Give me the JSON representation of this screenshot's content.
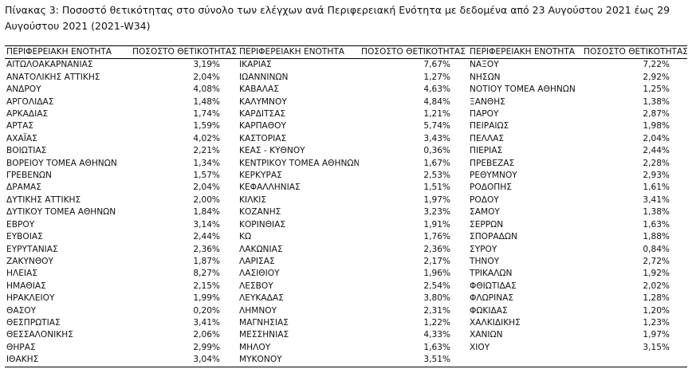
{
  "caption": "Πίνακας 3: Ποσοστό θετικότητας στο σύνολο των ελέγχων ανά Περιφερειακή Ενότητα με δεδομένα από 23 Αυγούστου 2021 έως 29 Αυγούστου 2021 (2021-W34)",
  "table": {
    "groups": [
      {
        "header": [
          "ΠΕΡΙΦΕΡΕΙΑΚΗ ΕΝΟΤΗΤΑ",
          "ΠΟΣΟΣΤΟ ΘΕΤΙΚΟΤΗΤΑΣ"
        ],
        "rows": [
          [
            "ΑΙΤΩΛΟΑΚΑΡΝΑΝΙΑΣ",
            "3,19%"
          ],
          [
            "ΑΝΑΤΟΛΙΚΗΣ ΑΤΤΙΚΗΣ",
            "2,04%"
          ],
          [
            "ΑΝΔΡΟΥ",
            "4,08%"
          ],
          [
            "ΑΡΓΟΛΙΔΑΣ",
            "1,48%"
          ],
          [
            "ΑΡΚΑΔΙΑΣ",
            "1,74%"
          ],
          [
            "ΑΡΤΑΣ",
            "1,59%"
          ],
          [
            "ΑΧΑΪΑΣ",
            "4,02%"
          ],
          [
            "ΒΟΙΩΤΙΑΣ",
            "2,21%"
          ],
          [
            "ΒΟΡΕΙΟΥ ΤΟΜΕΑ ΑΘΗΝΩΝ",
            "1,34%"
          ],
          [
            "ΓΡΕΒΕΝΩΝ",
            "1,57%"
          ],
          [
            "ΔΡΑΜΑΣ",
            "2,04%"
          ],
          [
            "ΔΥΤΙΚΗΣ ΑΤΤΙΚΗΣ",
            "2,00%"
          ],
          [
            "ΔΥΤΙΚΟΥ ΤΟΜΕΑ ΑΘΗΝΩΝ",
            "1,84%"
          ],
          [
            "ΕΒΡΟΥ",
            "3,14%"
          ],
          [
            "ΕΥΒΟΙΑΣ",
            "2,44%"
          ],
          [
            "ΕΥΡΥΤΑΝΙΑΣ",
            "2,36%"
          ],
          [
            "ΖΑΚΥΝΘΟΥ",
            "1,87%"
          ],
          [
            "ΗΛΕΙΑΣ",
            "8,27%"
          ],
          [
            "ΗΜΑΘΙΑΣ",
            "2,15%"
          ],
          [
            "ΗΡΑΚΛΕΙΟΥ",
            "1,99%"
          ],
          [
            "ΘΑΣΟΥ",
            "0,20%"
          ],
          [
            "ΘΕΣΠΡΩΤΙΑΣ",
            "3,41%"
          ],
          [
            "ΘΕΣΣΑΛΟΝΙΚΗΣ",
            "2,06%"
          ],
          [
            "ΘΗΡΑΣ",
            "2,99%"
          ],
          [
            "ΙΘΑΚΗΣ",
            "3,04%"
          ]
        ]
      },
      {
        "header": [
          "ΠΕΡΙΦΕΡΕΙΑΚΗ ΕΝΟΤΗΤΑ",
          "ΠΟΣΟΣΤΟ ΘΕΤΙΚΟΤΗΤΑΣ"
        ],
        "rows": [
          [
            "ΙΚΑΡΙΑΣ",
            "7,67%"
          ],
          [
            "ΙΩΑΝΝΙΝΩΝ",
            "1,27%"
          ],
          [
            "ΚΑΒΑΛΑΣ",
            "4,63%"
          ],
          [
            "ΚΑΛΥΜΝΟΥ",
            "4,84%"
          ],
          [
            "ΚΑΡΔΙΤΣΑΣ",
            "1,21%"
          ],
          [
            "ΚΑΡΠΑΘΟΥ",
            "5,74%"
          ],
          [
            "ΚΑΣΤΟΡΙΑΣ",
            "3,43%"
          ],
          [
            "ΚΕΑΣ - ΚΥΘΝΟΥ",
            "0,36%"
          ],
          [
            "ΚΕΝΤΡΙΚΟΥ ΤΟΜΕΑ ΑΘΗΝΩΝ",
            "1,67%"
          ],
          [
            "ΚΕΡΚΥΡΑΣ",
            "2,53%"
          ],
          [
            "ΚΕΦΑΛΛΗΝΙΑΣ",
            "1,51%"
          ],
          [
            "ΚΙΛΚΙΣ",
            "1,97%"
          ],
          [
            "ΚΟΖΑΝΗΣ",
            "3,23%"
          ],
          [
            "ΚΟΡΙΝΘΙΑΣ",
            "1,91%"
          ],
          [
            "ΚΩ",
            "1,76%"
          ],
          [
            "ΛΑΚΩΝΙΑΣ",
            "2,36%"
          ],
          [
            "ΛΑΡΙΣΑΣ",
            "2,17%"
          ],
          [
            "ΛΑΣΙΘΙΟΥ",
            "1,96%"
          ],
          [
            "ΛΕΣΒΟΥ",
            "2,54%"
          ],
          [
            "ΛΕΥΚΑΔΑΣ",
            "3,80%"
          ],
          [
            "ΛΗΜΝΟΥ",
            "2,31%"
          ],
          [
            "ΜΑΓΝΗΣΙΑΣ",
            "1,22%"
          ],
          [
            "ΜΕΣΣΗΝΙΑΣ",
            "4,33%"
          ],
          [
            "ΜΗΛΟΥ",
            "1,63%"
          ],
          [
            "ΜΥΚΟΝΟΥ",
            "3,51%"
          ]
        ]
      },
      {
        "header": [
          "ΠΕΡΙΦΕΡΕΙΑΚΗ ΕΝΟΤΗΤΑ",
          "ΠΟΣΟΣΤΟ ΘΕΤΙΚΟΤΗΤΑΣ"
        ],
        "rows": [
          [
            "ΝΑΞΟΥ",
            "7,22%"
          ],
          [
            "ΝΗΣΩΝ",
            "2,92%"
          ],
          [
            "ΝΟΤΙΟΥ ΤΟΜΕΑ ΑΘΗΝΩΝ",
            "1,25%"
          ],
          [
            "ΞΑΝΘΗΣ",
            "1,38%"
          ],
          [
            "ΠΑΡΟΥ",
            "2,87%"
          ],
          [
            "ΠΕΙΡΑΙΩΣ",
            "1,98%"
          ],
          [
            "ΠΕΛΛΑΣ",
            "2,04%"
          ],
          [
            "ΠΙΕΡΙΑΣ",
            "2,44%"
          ],
          [
            "ΠΡΕΒΕΖΑΣ",
            "2,28%"
          ],
          [
            "ΡΕΘΥΜΝΟΥ",
            "2,93%"
          ],
          [
            "ΡΟΔΟΠΗΣ",
            "1,61%"
          ],
          [
            "ΡΟΔΟΥ",
            "3,41%"
          ],
          [
            "ΣΑΜΟΥ",
            "1,38%"
          ],
          [
            "ΣΕΡΡΩΝ",
            "1,63%"
          ],
          [
            "ΣΠΟΡΑΔΩΝ",
            "1,88%"
          ],
          [
            "ΣΥΡΟΥ",
            "0,84%"
          ],
          [
            "ΤΗΝΟΥ",
            "2,72%"
          ],
          [
            "ΤΡΙΚΑΛΩΝ",
            "1,92%"
          ],
          [
            "ΦΘΙΩΤΙΔΑΣ",
            "2,02%"
          ],
          [
            "ΦΛΩΡΙΝΑΣ",
            "1,28%"
          ],
          [
            "ΦΩΚΙΔΑΣ",
            "1,20%"
          ],
          [
            "ΧΑΛΚΙΔΙΚΗΣ",
            "1,23%"
          ],
          [
            "ΧΑΝΙΩΝ",
            "1,97%"
          ],
          [
            "ΧΙΟΥ",
            "3,15%"
          ]
        ]
      }
    ]
  }
}
